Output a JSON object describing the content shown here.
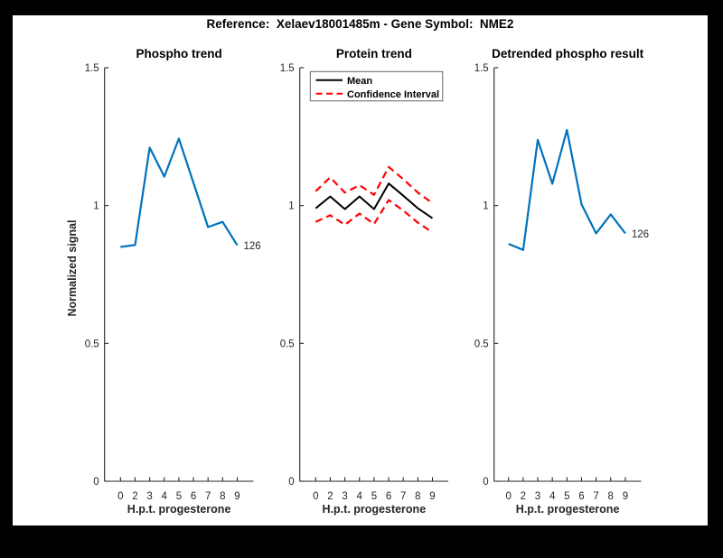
{
  "figure": {
    "suptitle": "Reference:  Xelaev18001485m - Gene Symbol:  NME2",
    "background_color": "#000000",
    "canvas_color": "#ffffff"
  },
  "colors": {
    "blue": "#0072BD",
    "red": "#FF0000",
    "black": "#000000",
    "axis": "#262626"
  },
  "axes": {
    "ylabel": "Normalized signal",
    "xlabel": "H.p.t. progesterone",
    "xtick_labels": [
      "0",
      "2",
      "3",
      "4",
      "5",
      "6",
      "7",
      "8",
      "9"
    ],
    "yticks": [
      0,
      0.5,
      1,
      1.5
    ],
    "ytick_labels": [
      "0",
      "0.5",
      "1",
      "1.5"
    ],
    "ylim": [
      0,
      1.5
    ],
    "grid": "off"
  },
  "chart_data": [
    {
      "id": "phospho-trend",
      "type": "line",
      "title": "Phospho trend",
      "xlabel": "H.p.t. progesterone",
      "ylabel": "Normalized signal",
      "categories": [
        "0",
        "2",
        "3",
        "4",
        "5",
        "6",
        "7",
        "8",
        "9"
      ],
      "ylim": [
        0,
        1.5
      ],
      "series": [
        {
          "name": "phospho-signal",
          "color": "#0072BD",
          "style": "solid",
          "values": [
            0.85,
            0.857,
            1.21,
            1.105,
            1.243,
            1.082,
            0.922,
            0.941,
            0.856
          ]
        }
      ],
      "end_label": "126"
    },
    {
      "id": "protein-trend",
      "type": "line",
      "title": "Protein trend",
      "xlabel": "H.p.t. progesterone",
      "categories": [
        "0",
        "2",
        "3",
        "4",
        "5",
        "6",
        "7",
        "8",
        "9"
      ],
      "ylim": [
        0,
        1.5
      ],
      "legend": {
        "position": "top-left",
        "entries": [
          {
            "label": "Mean",
            "color": "#000000",
            "style": "solid"
          },
          {
            "label": "Confidence Interval",
            "color": "#FF0000",
            "style": "dashed"
          }
        ]
      },
      "series": [
        {
          "name": "ci-upper",
          "color": "#FF0000",
          "style": "dashed",
          "values": [
            1.052,
            1.102,
            1.047,
            1.074,
            1.039,
            1.14,
            1.096,
            1.047,
            1.009
          ]
        },
        {
          "name": "ci-lower",
          "color": "#FF0000",
          "style": "dashed",
          "values": [
            0.941,
            0.965,
            0.93,
            0.971,
            0.933,
            1.02,
            0.982,
            0.938,
            0.903
          ]
        },
        {
          "name": "mean",
          "color": "#000000",
          "style": "solid",
          "values": [
            0.99,
            1.033,
            0.987,
            1.033,
            0.987,
            1.08,
            1.036,
            0.99,
            0.954
          ]
        }
      ]
    },
    {
      "id": "detrended-phospho-result",
      "type": "line",
      "title": "Detrended phospho result",
      "xlabel": "H.p.t. progesterone",
      "categories": [
        "0",
        "2",
        "3",
        "4",
        "5",
        "6",
        "7",
        "8",
        "9"
      ],
      "ylim": [
        0,
        1.5
      ],
      "series": [
        {
          "name": "detrended-phospho",
          "color": "#0072BD",
          "style": "solid",
          "values": [
            0.861,
            0.839,
            1.238,
            1.079,
            1.274,
            1.004,
            0.899,
            0.968,
            0.899
          ]
        }
      ],
      "end_label": "126"
    }
  ]
}
